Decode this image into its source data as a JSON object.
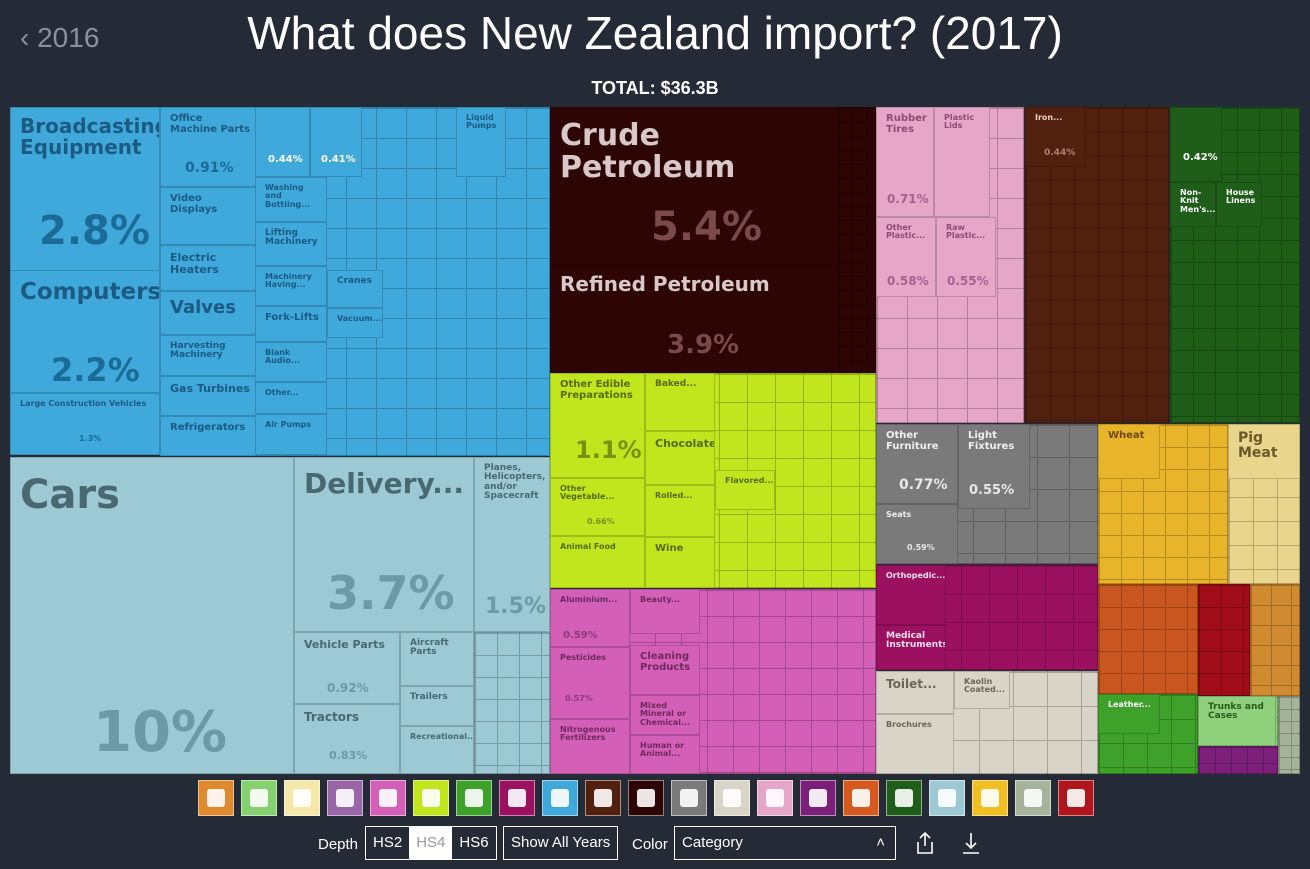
{
  "header": {
    "back_label": "2016",
    "title": "What does New Zealand import? (2017)",
    "total": "TOTAL: $36.3B"
  },
  "chart_data": {
    "type": "treemap",
    "title": "What does New Zealand import? (2017)",
    "total": "$36.3B",
    "items": [
      {
        "label": "Broadcasting Equipment",
        "value": "2.8%",
        "color": "#3fa9dc"
      },
      {
        "label": "Computers",
        "value": "2.2%",
        "color": "#3fa9dc"
      },
      {
        "label": "Large Construction Vehicles",
        "value": "1.3%",
        "color": "#3fa9dc"
      },
      {
        "label": "Office Machine Parts",
        "value": "0.91%",
        "color": "#3fa9dc"
      },
      {
        "label": "Video Displays",
        "value": "",
        "color": "#3fa9dc"
      },
      {
        "label": "Electric Heaters",
        "value": "",
        "color": "#3fa9dc"
      },
      {
        "label": "Valves",
        "value": "",
        "color": "#3fa9dc"
      },
      {
        "label": "Harvesting Machinery",
        "value": "",
        "color": "#3fa9dc"
      },
      {
        "label": "Gas Turbines",
        "value": "",
        "color": "#3fa9dc"
      },
      {
        "label": "Refrigerators",
        "value": "",
        "color": "#3fa9dc"
      },
      {
        "label": "",
        "value": "0.44%",
        "color": "#3fa9dc"
      },
      {
        "label": "",
        "value": "0.41%",
        "color": "#3fa9dc"
      },
      {
        "label": "Liquid Pumps",
        "value": "",
        "color": "#3fa9dc"
      },
      {
        "label": "Washing and Bottling...",
        "value": "",
        "color": "#3fa9dc"
      },
      {
        "label": "Lifting Machinery",
        "value": "",
        "color": "#3fa9dc"
      },
      {
        "label": "Machinery Having...",
        "value": "",
        "color": "#3fa9dc"
      },
      {
        "label": "Fork-Lifts",
        "value": "",
        "color": "#3fa9dc"
      },
      {
        "label": "Blank Audio...",
        "value": "",
        "color": "#3fa9dc"
      },
      {
        "label": "Other...",
        "value": "",
        "color": "#3fa9dc"
      },
      {
        "label": "Air Pumps",
        "value": "",
        "color": "#3fa9dc"
      },
      {
        "label": "Cranes",
        "value": "",
        "color": "#3fa9dc"
      },
      {
        "label": "Vacuum...",
        "value": "",
        "color": "#3fa9dc"
      },
      {
        "label": "Cars",
        "value": "10%",
        "color": "#9cc9d4"
      },
      {
        "label": "Delivery...",
        "value": "3.7%",
        "color": "#9cc9d4"
      },
      {
        "label": "Planes, Helicopters, and/or Spacecraft",
        "value": "1.5%",
        "color": "#9cc9d4"
      },
      {
        "label": "Vehicle Parts",
        "value": "0.92%",
        "color": "#9cc9d4"
      },
      {
        "label": "Tractors",
        "value": "0.83%",
        "color": "#9cc9d4"
      },
      {
        "label": "Aircraft Parts",
        "value": "",
        "color": "#9cc9d4"
      },
      {
        "label": "Trailers",
        "value": "",
        "color": "#9cc9d4"
      },
      {
        "label": "Recreational...",
        "value": "",
        "color": "#9cc9d4"
      },
      {
        "label": "Crude Petroleum",
        "value": "5.4%",
        "color": "#2d0505"
      },
      {
        "label": "Refined Petroleum",
        "value": "3.9%",
        "color": "#2d0505"
      },
      {
        "label": "Other Edible Preparations",
        "value": "1.1%",
        "color": "#c1e61e"
      },
      {
        "label": "Baked...",
        "value": "",
        "color": "#c1e61e"
      },
      {
        "label": "Chocolate",
        "value": "",
        "color": "#c1e61e"
      },
      {
        "label": "Other Vegetable...",
        "value": "0.66%",
        "color": "#c1e61e"
      },
      {
        "label": "Rolled...",
        "value": "",
        "color": "#c1e61e"
      },
      {
        "label": "Flavored...",
        "value": "",
        "color": "#c1e61e"
      },
      {
        "label": "Animal Food",
        "value": "",
        "color": "#c1e61e"
      },
      {
        "label": "Wine",
        "value": "",
        "color": "#c1e61e"
      },
      {
        "label": "Aluminium...",
        "value": "0.59%",
        "color": "#d45fb6"
      },
      {
        "label": "Beauty...",
        "value": "",
        "color": "#d45fb6"
      },
      {
        "label": "Pesticides",
        "value": "0.57%",
        "color": "#d45fb6"
      },
      {
        "label": "Cleaning Products",
        "value": "",
        "color": "#d45fb6"
      },
      {
        "label": "Mixed Mineral or Chemical...",
        "value": "",
        "color": "#d45fb6"
      },
      {
        "label": "Nitrogenous Fertilizers",
        "value": "",
        "color": "#d45fb6"
      },
      {
        "label": "Human or Animal...",
        "value": "",
        "color": "#d45fb6"
      },
      {
        "label": "Rubber Tires",
        "value": "0.71%",
        "color": "#e6a6c8"
      },
      {
        "label": "Plastic Lids",
        "value": "",
        "color": "#e6a6c8"
      },
      {
        "label": "Other Plastic...",
        "value": "0.58%",
        "color": "#e6a6c8"
      },
      {
        "label": "Raw Plastic...",
        "value": "0.55%",
        "color": "#e6a6c8"
      },
      {
        "label": "Iron...",
        "value": "0.44%",
        "color": "#52200f"
      },
      {
        "label": "",
        "value": "0.42%",
        "color": "#1f5e18"
      },
      {
        "label": "Non-Knit Men's...",
        "value": "",
        "color": "#1f5e18"
      },
      {
        "label": "House Linens",
        "value": "",
        "color": "#1f5e18"
      },
      {
        "label": "Other Furniture",
        "value": "0.77%",
        "color": "#7a7a7a"
      },
      {
        "label": "Light Fixtures",
        "value": "0.55%",
        "color": "#7a7a7a"
      },
      {
        "label": "Seats",
        "value": "0.59%",
        "color": "#7a7a7a"
      },
      {
        "label": "Orthopedic...",
        "value": "",
        "color": "#9c1060"
      },
      {
        "label": "Medical Instruments",
        "value": "",
        "color": "#9c1060"
      },
      {
        "label": "Toilet...",
        "value": "",
        "color": "#d9d4c8"
      },
      {
        "label": "Kaolin Coated...",
        "value": "",
        "color": "#d9d4c8"
      },
      {
        "label": "Brochures",
        "value": "",
        "color": "#d9d4c8"
      },
      {
        "label": "Wheat",
        "value": "",
        "color": "#e8b52a"
      },
      {
        "label": "Pig Meat",
        "value": "",
        "color": "#e9d58b"
      },
      {
        "label": "Leather...",
        "value": "",
        "color": "#3ea22a"
      },
      {
        "label": "Trunks and Cases",
        "value": "",
        "color": "#8ed07b"
      }
    ]
  },
  "categories": [
    {
      "icon": "bottle-icon",
      "color": "#e08a30"
    },
    {
      "icon": "hide-icon",
      "color": "#86d16f"
    },
    {
      "icon": "animal-icon",
      "color": "#f5e7a8"
    },
    {
      "icon": "art-icon",
      "color": "#9966a8"
    },
    {
      "icon": "chemicals-icon",
      "color": "#d45fb6"
    },
    {
      "icon": "grain-icon",
      "color": "#c1e61e"
    },
    {
      "icon": "shoe-icon",
      "color": "#3ea22a"
    },
    {
      "icon": "instruments-icon",
      "color": "#9c1060"
    },
    {
      "icon": "machines-icon",
      "color": "#3fa9dc"
    },
    {
      "icon": "metals-icon",
      "color": "#52200f"
    },
    {
      "icon": "minerals-icon",
      "color": "#2d0505"
    },
    {
      "icon": "misc-icon",
      "color": "#7a7a7a"
    },
    {
      "icon": "paper-icon",
      "color": "#d9d4c8"
    },
    {
      "icon": "plastics-icon",
      "color": "#e6a6c8"
    },
    {
      "icon": "precious-icon",
      "color": "#7b1f7a"
    },
    {
      "icon": "stone-icon",
      "color": "#d65a1e"
    },
    {
      "icon": "textiles-icon",
      "color": "#1f5e18"
    },
    {
      "icon": "transport-icon",
      "color": "#9cc9d4"
    },
    {
      "icon": "vegetable-icon",
      "color": "#f2bf22"
    },
    {
      "icon": "weapons-icon",
      "color": "#a5b39a"
    },
    {
      "icon": "wood-icon",
      "color": "#b0141c"
    }
  ],
  "controls": {
    "depth_label": "Depth",
    "depth_options": [
      "HS2",
      "HS4",
      "HS6"
    ],
    "show_all_years": "Show All Years",
    "color_label": "Color",
    "color_value": "Category"
  }
}
